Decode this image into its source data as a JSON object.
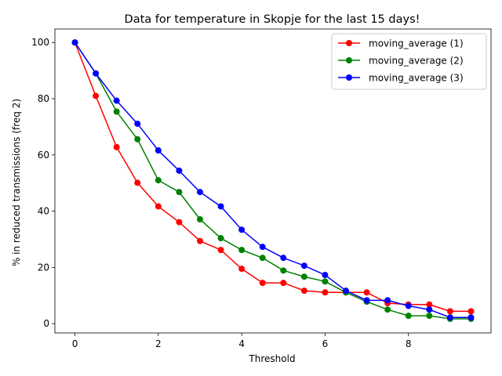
{
  "chart_data": {
    "type": "line",
    "title": "Data for temperature in Skopje for the last 15 days!",
    "xlabel": "Threshold",
    "ylabel": "% in reduced transmissions (freq 2)",
    "xlim": [
      -0.48,
      9.98
    ],
    "ylim": [
      -3.3,
      104.8
    ],
    "xticks": [
      0,
      2,
      4,
      6,
      8
    ],
    "yticks": [
      0,
      20,
      40,
      60,
      80,
      100
    ],
    "grid": false,
    "legend_position": "upper right",
    "x": [
      0,
      0.5,
      1,
      1.5,
      2,
      2.5,
      3,
      3.5,
      4,
      4.5,
      5,
      5.5,
      6,
      6.5,
      7,
      7.5,
      8,
      8.5,
      9,
      9.5
    ],
    "series": [
      {
        "name": "moving_average (1)",
        "color": "#ff0000",
        "values": [
          100,
          81,
          62.8,
          50.1,
          41.7,
          36.1,
          29.4,
          26.2,
          19.5,
          14.5,
          14.5,
          11.7,
          11.1,
          11.1,
          11.1,
          7.3,
          6.8,
          6.8,
          4.4,
          4.4
        ]
      },
      {
        "name": "moving_average (2)",
        "color": "#008000",
        "values": [
          100,
          89,
          75.4,
          65.6,
          51.0,
          46.8,
          37.1,
          30.4,
          26.2,
          23.4,
          18.9,
          16.7,
          15.0,
          11.1,
          7.8,
          5.0,
          2.8,
          2.8,
          1.7,
          1.7
        ]
      },
      {
        "name": "moving_average (3)",
        "color": "#0000ff",
        "values": [
          100,
          89,
          79.3,
          71.1,
          61.6,
          54.4,
          46.8,
          41.7,
          33.4,
          27.3,
          23.4,
          20.6,
          17.3,
          11.7,
          8.3,
          8.3,
          6.3,
          5.0,
          2.2,
          2.2
        ]
      }
    ]
  }
}
